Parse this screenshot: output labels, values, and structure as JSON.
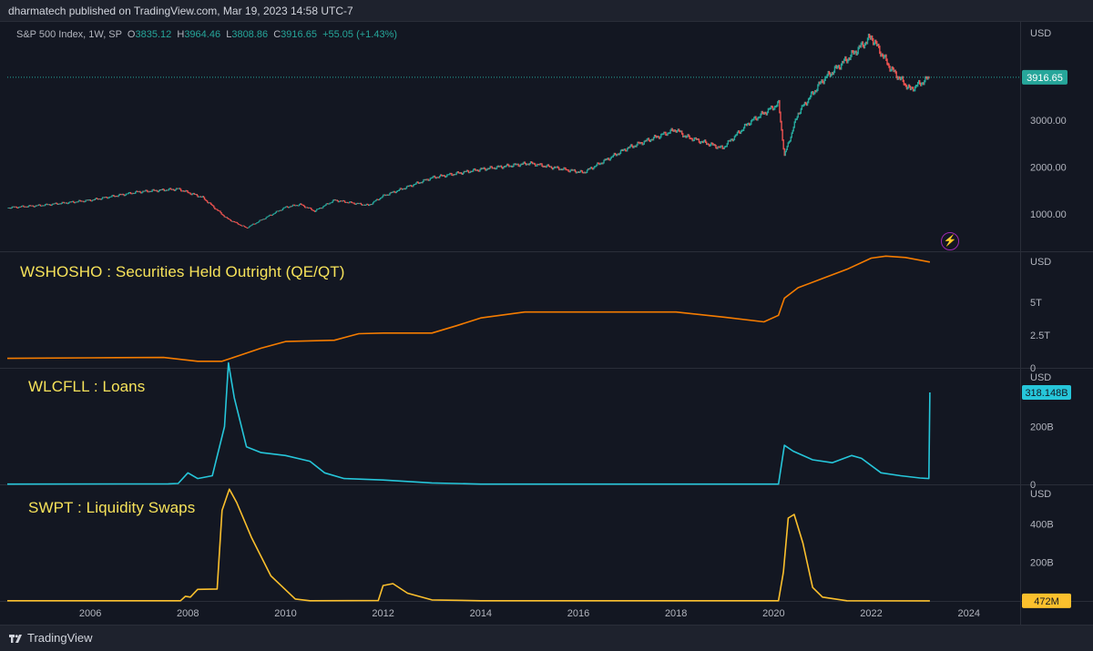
{
  "header": {
    "publisher": "dharmatech published on TradingView.com, Mar 19, 2023 14:58 UTC-7"
  },
  "legend": {
    "symbol": "S&P 500 Index, 1W, SP",
    "o_label": "O",
    "o": "3835.12",
    "h_label": "H",
    "h": "3964.46",
    "l_label": "L",
    "l": "3808.86",
    "c_label": "C",
    "c": "3916.65",
    "change": "+55.05 (+1.43%)"
  },
  "footer": {
    "brand": "TradingView"
  },
  "colors": {
    "background": "#131722",
    "grid": "#2a2e39",
    "spx_up": "#26a69a",
    "spx_down": "#ef5350",
    "wshosho": "#f57c00",
    "wlcfll": "#26c6da",
    "swpt": "#fbc02d",
    "title": "#f7e35a"
  },
  "icons": {
    "alert": "bolt-icon",
    "logo": "tradingview-logo-icon"
  },
  "chart_data": [
    {
      "type": "line",
      "title": "",
      "unit": "USD",
      "yticks": [
        1000,
        2000,
        3000
      ],
      "ytick_labels": [
        "1000.00",
        "2000.00",
        "3000.00"
      ],
      "ylim": [
        200,
        5100
      ],
      "last_value": 3916.65,
      "last_label": "3916.65",
      "series": [
        {
          "x": [
            2004.3,
            2005,
            2006,
            2007,
            2007.8,
            2008.3,
            2008.8,
            2009.2,
            2010,
            2010.3,
            2010.6,
            2011,
            2011.7,
            2012,
            2013,
            2014,
            2015,
            2015.7,
            2016.1,
            2017,
            2018,
            2018.2,
            2018.95,
            2019.5,
            2020.1,
            2020.22,
            2020.5,
            2021,
            2021.5,
            2022,
            2022.4,
            2022.8,
            2023.2
          ],
          "y": [
            1130,
            1180,
            1290,
            1470,
            1530,
            1350,
            900,
            700,
            1140,
            1200,
            1060,
            1290,
            1180,
            1380,
            1770,
            1950,
            2080,
            1950,
            1880,
            2400,
            2800,
            2650,
            2400,
            2950,
            3350,
            2240,
            3150,
            3850,
            4300,
            4780,
            4100,
            3650,
            3916.65
          ]
        }
      ]
    },
    {
      "type": "line",
      "title": "WSHOSHO : Securities Held Outright (QE/QT)",
      "unit": "USD",
      "yticks": [
        0,
        2500000000000,
        5000000000000
      ],
      "ytick_labels": [
        "0",
        "2.5T",
        "5T"
      ],
      "ylim": [
        0,
        8800000000000
      ],
      "series": [
        {
          "x": [
            2004.3,
            2006,
            2007.5,
            2008.2,
            2008.7,
            2009.1,
            2009.5,
            2010,
            2011,
            2011.5,
            2012,
            2013,
            2013.5,
            2014,
            2014.9,
            2016,
            2018,
            2019,
            2019.8,
            2020.1,
            2020.22,
            2020.5,
            2021,
            2021.5,
            2022,
            2022.3,
            2022.7,
            2023.2
          ],
          "y": [
            720000000000,
            760000000000,
            790000000000,
            500000000000,
            500000000000,
            1000000000000,
            1500000000000,
            2000000000000,
            2100000000000,
            2600000000000,
            2650000000000,
            2650000000000,
            3200000000000,
            3800000000000,
            4250000000000,
            4250000000000,
            4250000000000,
            3850000000000,
            3500000000000,
            4000000000000,
            5300000000000,
            6100000000000,
            6800000000000,
            7500000000000,
            8350000000000,
            8500000000000,
            8400000000000,
            8050000000000
          ]
        }
      ]
    },
    {
      "type": "line",
      "title": "WLCFLL : Loans",
      "unit": "USD",
      "yticks": [
        0,
        200000000000
      ],
      "ytick_labels": [
        "0",
        "200B"
      ],
      "ylim": [
        0,
        400000000000
      ],
      "last_value": 318148000000,
      "last_label": "318.148B",
      "series": [
        {
          "x": [
            2004.3,
            2007.6,
            2007.8,
            2008.0,
            2008.2,
            2008.5,
            2008.75,
            2008.83,
            2008.95,
            2009.2,
            2009.5,
            2010,
            2010.5,
            2010.8,
            2011.2,
            2012,
            2013,
            2014,
            2016,
            2018,
            2020.1,
            2020.22,
            2020.4,
            2020.8,
            2021.2,
            2021.6,
            2021.8,
            2022.2,
            2022.6,
            2023.0,
            2023.18,
            2023.2
          ],
          "y": [
            1000000000,
            2000000000,
            3000000000,
            40000000000,
            20000000000,
            30000000000,
            200000000000,
            420000000000,
            300000000000,
            130000000000,
            110000000000,
            100000000000,
            80000000000,
            40000000000,
            20000000000,
            15000000000,
            5000000000,
            1000000000,
            1000000000,
            1000000000,
            1000000000,
            135000000000,
            115000000000,
            85000000000,
            75000000000,
            100000000000,
            90000000000,
            40000000000,
            30000000000,
            22000000000,
            20000000000,
            318148000000
          ]
        }
      ]
    },
    {
      "type": "line",
      "title": "SWPT : Liquidity Swaps",
      "unit": "USD",
      "yticks": [
        200000000000,
        400000000000
      ],
      "ytick_labels": [
        "200B",
        "400B"
      ],
      "ylim": [
        0,
        600000000000
      ],
      "last_value": 472000000,
      "last_label": "472M",
      "series": [
        {
          "x": [
            2004.3,
            2007.85,
            2007.95,
            2008.05,
            2008.2,
            2008.6,
            2008.7,
            2008.85,
            2009.0,
            2009.3,
            2009.7,
            2010.2,
            2010.5,
            2011.9,
            2012.0,
            2012.2,
            2012.5,
            2013,
            2014,
            2016,
            2018,
            2020.1,
            2020.2,
            2020.3,
            2020.42,
            2020.6,
            2020.8,
            2021.0,
            2021.5,
            2023.2
          ],
          "y": [
            1000000000,
            1000000000,
            24000000000,
            20000000000,
            60000000000,
            62000000000,
            470000000000,
            580000000000,
            510000000000,
            330000000000,
            130000000000,
            10000000000,
            1000000000,
            2000000000,
            80000000000,
            90000000000,
            40000000000,
            5000000000,
            1000000000,
            1000000000,
            1000000000,
            1000000000,
            150000000000,
            430000000000,
            449000000000,
            300000000000,
            70000000000,
            20000000000,
            1000000000,
            472000000
          ]
        }
      ]
    }
  ],
  "xaxis": {
    "ticks": [
      2006,
      2008,
      2010,
      2012,
      2014,
      2016,
      2018,
      2020,
      2022,
      2024
    ],
    "labels": [
      "2006",
      "2008",
      "2010",
      "2012",
      "2014",
      "2016",
      "2018",
      "2020",
      "2022",
      "2024"
    ],
    "range": [
      2004.3,
      2025.05
    ]
  }
}
